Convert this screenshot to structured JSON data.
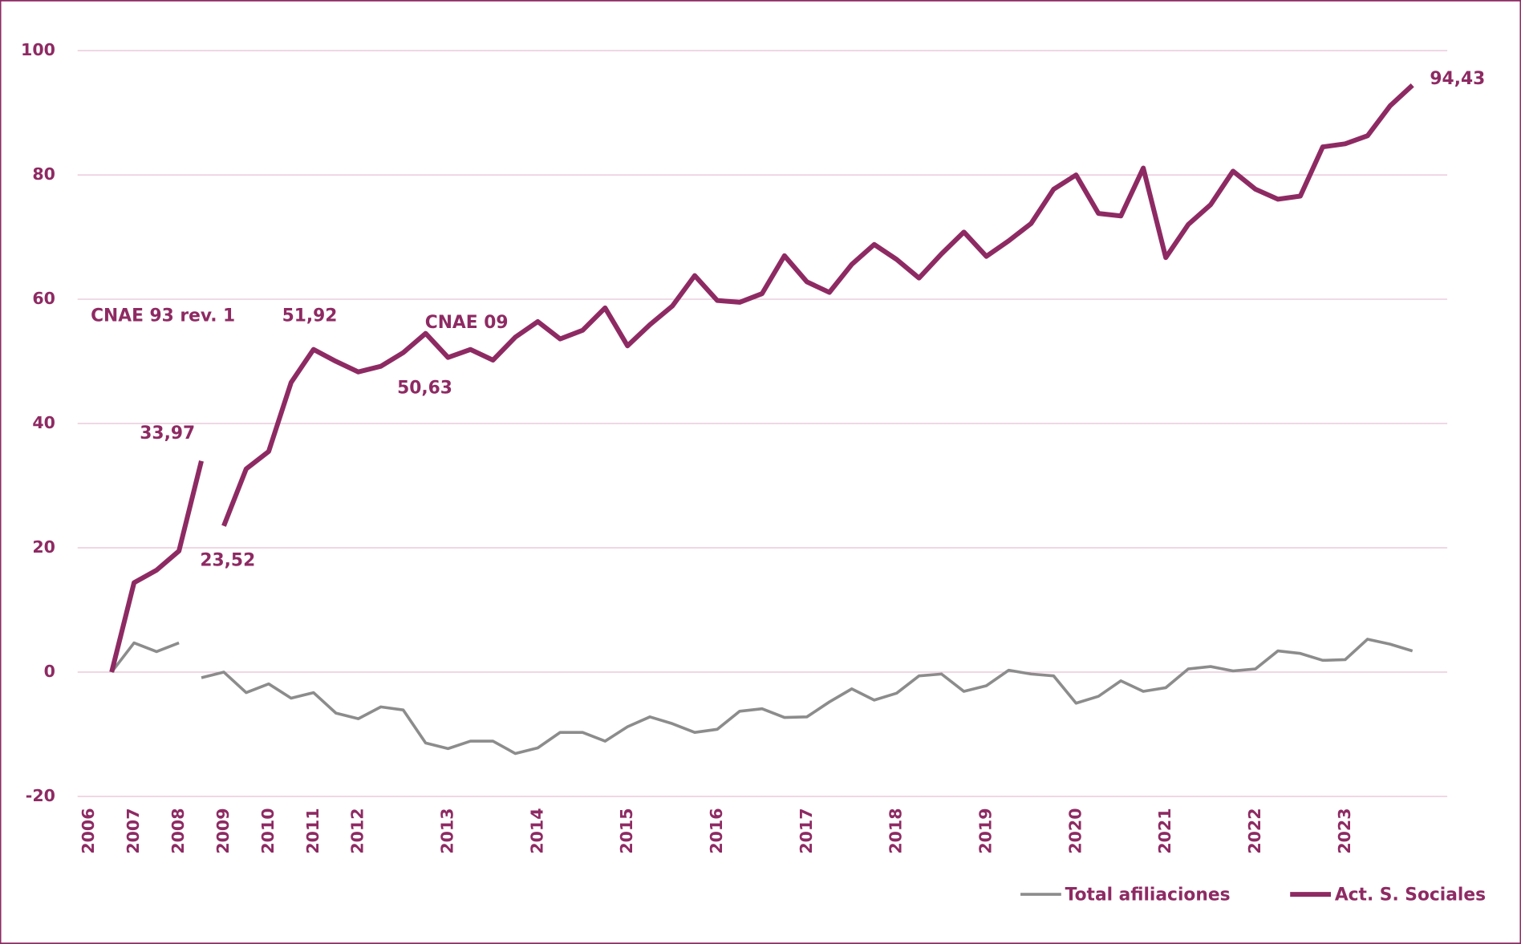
{
  "chart_data": {
    "type": "line",
    "categories": [
      "2006",
      null,
      "2007",
      null,
      "2008",
      null,
      "2009",
      null,
      "2010",
      null,
      "2011",
      null,
      "2012",
      null,
      null,
      null,
      "2013",
      null,
      null,
      null,
      "2014",
      null,
      null,
      null,
      "2015",
      null,
      null,
      null,
      "2016",
      null,
      null,
      null,
      "2017",
      null,
      null,
      null,
      "2018",
      null,
      null,
      null,
      "2019",
      null,
      null,
      null,
      "2020",
      null,
      null,
      null,
      "2021",
      null,
      null,
      null,
      "2022",
      null,
      null,
      null,
      "2023",
      null,
      null,
      null
    ],
    "series": [
      {
        "name": "Total afiliaciones",
        "color": "#8c8c8c",
        "breaks": [
          4
        ],
        "values": [
          null,
          0,
          4.7,
          3.3,
          4.7,
          -0.9,
          0,
          -3.3,
          -1.9,
          -4.2,
          -3.3,
          -6.6,
          -7.5,
          -5.6,
          -6.1,
          -11.4,
          -12.3,
          -11.1,
          -11.1,
          -13.1,
          -12.2,
          -9.7,
          -9.7,
          -11.1,
          -8.8,
          -7.2,
          -8.3,
          -9.7,
          -9.2,
          -6.3,
          -5.9,
          -7.3,
          -7.2,
          -4.8,
          -2.7,
          -4.5,
          -3.4,
          -0.6,
          -0.3,
          -3.1,
          -2.2,
          0.3,
          -0.3,
          -0.6,
          -5.0,
          -3.9,
          -1.4,
          -3.1,
          -2.5,
          0.5,
          0.9,
          0.2,
          0.5,
          3.4,
          3.0,
          1.9,
          2.0,
          5.3,
          4.5,
          3.4
        ]
      },
      {
        "name": "Act. S. Sociales",
        "color": "#8e2a63",
        "breaks": [
          5
        ],
        "values": [
          null,
          0,
          14.4,
          16.4,
          19.5,
          33.97,
          23.52,
          32.7,
          35.5,
          46.6,
          51.92,
          50.0,
          48.3,
          49.2,
          51.4,
          54.5,
          50.63,
          51.9,
          50.2,
          53.9,
          56.4,
          53.6,
          55.0,
          58.6,
          52.5,
          55.9,
          58.9,
          63.8,
          59.8,
          59.5,
          60.9,
          67.0,
          62.8,
          61.1,
          65.6,
          68.8,
          66.4,
          63.4,
          67.3,
          70.8,
          66.9,
          69.4,
          72.2,
          77.7,
          80.0,
          73.8,
          73.4,
          81.1,
          66.7,
          72.0,
          75.2,
          80.6,
          77.7,
          76.1,
          76.6,
          84.5,
          85.0,
          86.3,
          91.1,
          94.43
        ],
        "value_labels": [
          null,
          null,
          null,
          null,
          null,
          "33,97",
          "23,52",
          null,
          null,
          null,
          "51,92",
          null,
          null,
          null,
          null,
          null,
          "50,63",
          null,
          null,
          null,
          null,
          null,
          null,
          null,
          null,
          null,
          null,
          null,
          null,
          null,
          null,
          null,
          null,
          null,
          null,
          null,
          null,
          null,
          null,
          null,
          null,
          null,
          null,
          null,
          null,
          null,
          null,
          null,
          null,
          null,
          null,
          null,
          null,
          null,
          null,
          null,
          null,
          null,
          null,
          "94,43"
        ]
      }
    ],
    "annotations": [
      "CNAE 93 rev. 1",
      "CNAE 09"
    ],
    "ylim": [
      -20,
      100
    ],
    "yticks": [
      -20,
      0,
      20,
      40,
      60,
      80,
      100
    ],
    "grid": true,
    "legend": "bottom-right"
  }
}
